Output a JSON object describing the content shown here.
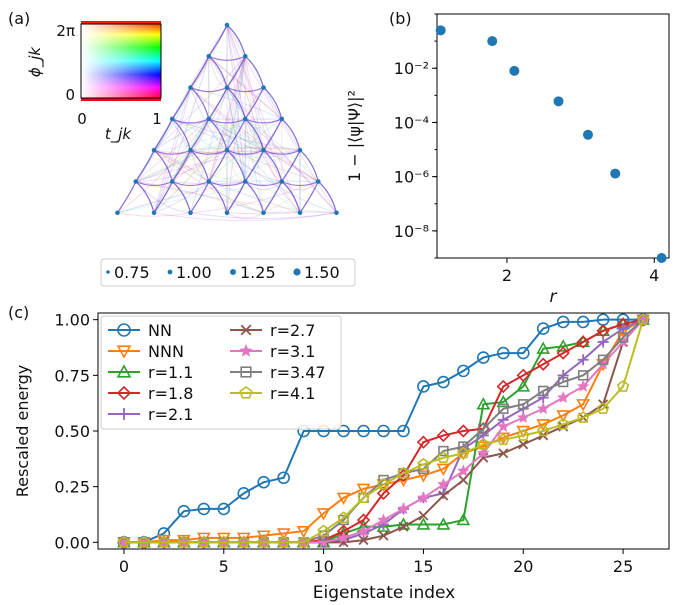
{
  "panels": {
    "a": {
      "label": "(a)",
      "inset": {
        "ylabel": "ϕ_jk",
        "xlabel": "t_jk",
        "yticks": [
          "0",
          "2π"
        ],
        "xticks": [
          "0",
          "1"
        ]
      },
      "legend": [
        "0.75",
        "1.00",
        "1.25",
        "1.50"
      ],
      "lattice_rows": 7
    },
    "b": {
      "label": "(b)",
      "ylabel": "1 − |⟨ψ|Ψ⟩|²",
      "xlabel": "r"
    },
    "c": {
      "label": "(c)",
      "ylabel": "Rescaled energy",
      "xlabel": "Eigenstate index"
    }
  },
  "chart_data": [
    {
      "panel": "a",
      "type": "scatter",
      "title": "",
      "note": "triangular lattice of 28 sites with colored couplings",
      "legend": [
        "0.75",
        "1.00",
        "1.25",
        "1.50"
      ]
    },
    {
      "panel": "b",
      "type": "scatter",
      "xlabel": "r",
      "ylabel": "1 − |⟨ψ|Ψ⟩|²",
      "xscale": "linear",
      "yscale": "log",
      "xlim": [
        1.05,
        4.2
      ],
      "ylim": [
        1e-09,
        1.0
      ],
      "xticks": [
        2,
        4
      ],
      "yticks": [
        {
          "value": 0.01,
          "label": "10⁻²"
        },
        {
          "value": 0.0001,
          "label": "10⁻⁴"
        },
        {
          "value": 1e-06,
          "label": "10⁻⁶"
        },
        {
          "value": 1e-08,
          "label": "10⁻⁸"
        }
      ],
      "color": "#1f77b4",
      "x": [
        1.1,
        1.8,
        2.1,
        2.7,
        3.1,
        3.47,
        4.1
      ],
      "y": [
        0.25,
        0.1,
        0.008,
        0.0006,
        3.5e-05,
        1.3e-06,
        1e-09
      ]
    },
    {
      "panel": "c",
      "type": "line",
      "xlabel": "Eigenstate index",
      "ylabel": "Rescaled energy",
      "xlim": [
        -1.3,
        27.3
      ],
      "ylim": [
        -0.03,
        1.03
      ],
      "xticks": [
        0,
        5,
        10,
        15,
        20,
        25
      ],
      "yticks": [
        0.0,
        0.25,
        0.5,
        0.75,
        1.0
      ],
      "ytick_labels": [
        "0.00",
        "0.25",
        "0.50",
        "0.75",
        "1.00"
      ],
      "grid": false,
      "legend_position": "top-left",
      "x": [
        0,
        1,
        2,
        3,
        4,
        5,
        6,
        7,
        8,
        9,
        10,
        11,
        12,
        13,
        14,
        15,
        16,
        17,
        18,
        19,
        20,
        21,
        22,
        23,
        24,
        25,
        26
      ],
      "series": [
        {
          "name": "NN",
          "color": "#1f77b4",
          "marker": "circle",
          "values": [
            0,
            0,
            0.04,
            0.14,
            0.15,
            0.15,
            0.22,
            0.27,
            0.29,
            0.5,
            0.5,
            0.5,
            0.5,
            0.5,
            0.5,
            0.7,
            0.72,
            0.77,
            0.83,
            0.85,
            0.85,
            0.96,
            0.99,
            0.99,
            1.0,
            1.0,
            1.0
          ]
        },
        {
          "name": "NNN",
          "color": "#ff7f0e",
          "marker": "triangle-down",
          "values": [
            0,
            0,
            0.01,
            0.01,
            0.02,
            0.02,
            0.02,
            0.03,
            0.04,
            0.05,
            0.13,
            0.2,
            0.24,
            0.26,
            0.28,
            0.3,
            0.33,
            0.4,
            0.43,
            0.47,
            0.5,
            0.53,
            0.57,
            0.62,
            0.8,
            0.95,
            1.0
          ]
        },
        {
          "name": "r=1.1",
          "color": "#2ca02c",
          "marker": "triangle-up",
          "values": [
            0,
            0,
            0,
            0,
            0,
            0,
            0,
            0,
            0,
            0,
            0,
            0.04,
            0.07,
            0.07,
            0.08,
            0.08,
            0.08,
            0.1,
            0.62,
            0.63,
            0.7,
            0.87,
            0.88,
            0.9,
            0.95,
            0.98,
            1.0
          ]
        },
        {
          "name": "r=1.8",
          "color": "#d62728",
          "marker": "diamond",
          "values": [
            0,
            0,
            0,
            0,
            0,
            0,
            0,
            0,
            0,
            0,
            0.01,
            0.05,
            0.1,
            0.22,
            0.3,
            0.45,
            0.48,
            0.5,
            0.51,
            0.7,
            0.75,
            0.8,
            0.85,
            0.9,
            0.95,
            0.98,
            1.0
          ]
        },
        {
          "name": "r=2.1",
          "color": "#9467bd",
          "marker": "plus",
          "values": [
            0,
            0,
            0,
            0,
            0,
            0,
            0,
            0,
            0,
            0,
            0,
            0.01,
            0.04,
            0.08,
            0.15,
            0.2,
            0.22,
            0.42,
            0.48,
            0.55,
            0.6,
            0.65,
            0.75,
            0.82,
            0.9,
            0.96,
            1.0
          ]
        },
        {
          "name": "r=2.7",
          "color": "#8c564b",
          "marker": "x",
          "values": [
            0,
            0,
            0,
            0,
            0,
            0,
            0,
            0,
            0,
            0,
            0,
            0,
            0.01,
            0.03,
            0.07,
            0.12,
            0.21,
            0.28,
            0.38,
            0.4,
            0.44,
            0.48,
            0.52,
            0.56,
            0.62,
            0.9,
            1.0
          ]
        },
        {
          "name": "r=3.1",
          "color": "#e377c2",
          "marker": "star",
          "values": [
            0,
            0,
            0,
            0,
            0,
            0,
            0,
            0,
            0,
            0,
            0,
            0.02,
            0.05,
            0.1,
            0.15,
            0.2,
            0.26,
            0.32,
            0.4,
            0.52,
            0.56,
            0.6,
            0.65,
            0.7,
            0.8,
            0.9,
            1.0
          ]
        },
        {
          "name": "r=3.47",
          "color": "#7f7f7f",
          "marker": "square",
          "values": [
            0,
            0,
            0,
            0,
            0,
            0,
            0,
            0,
            0,
            0,
            0.03,
            0.1,
            0.2,
            0.28,
            0.31,
            0.33,
            0.41,
            0.43,
            0.51,
            0.6,
            0.62,
            0.68,
            0.72,
            0.75,
            0.82,
            0.92,
            1.0
          ]
        },
        {
          "name": "r=4.1",
          "color": "#bcbd22",
          "marker": "pentagon",
          "values": [
            0,
            0,
            0,
            0,
            0,
            0,
            0,
            0,
            0,
            0,
            0.05,
            0.11,
            0.2,
            0.26,
            0.31,
            0.35,
            0.38,
            0.4,
            0.44,
            0.46,
            0.48,
            0.5,
            0.53,
            0.56,
            0.6,
            0.7,
            1.0
          ]
        }
      ]
    }
  ]
}
